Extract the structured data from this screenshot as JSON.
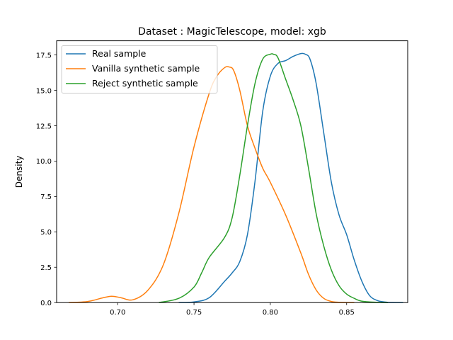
{
  "chart_data": {
    "type": "line",
    "title": "Dataset : MagicTelescope, model: xgb",
    "xlabel": "",
    "ylabel": "Density",
    "xlim": [
      0.66,
      0.89
    ],
    "ylim": [
      0,
      18.5
    ],
    "xticks": [
      0.7,
      0.75,
      0.8,
      0.85
    ],
    "xtick_labels": [
      "0.70",
      "0.75",
      "0.80",
      "0.85"
    ],
    "yticks": [
      0.0,
      2.5,
      5.0,
      7.5,
      10.0,
      12.5,
      15.0,
      17.5
    ],
    "ytick_labels": [
      "0.0",
      "2.5",
      "5.0",
      "7.5",
      "10.0",
      "12.5",
      "15.0",
      "17.5"
    ],
    "grid": false,
    "legend_position": "top-left",
    "series": [
      {
        "name": "Real sample",
        "color": "#1f77b4",
        "x": [
          0.74,
          0.75,
          0.76,
          0.77,
          0.775,
          0.78,
          0.785,
          0.79,
          0.795,
          0.8,
          0.805,
          0.81,
          0.815,
          0.82,
          0.823,
          0.826,
          0.83,
          0.835,
          0.84,
          0.845,
          0.85,
          0.855,
          0.86,
          0.865,
          0.87,
          0.875,
          0.88,
          0.887
        ],
        "y": [
          0.0,
          0.05,
          0.35,
          1.5,
          2.1,
          2.9,
          4.8,
          8.6,
          13.5,
          16.0,
          16.9,
          17.1,
          17.4,
          17.6,
          17.55,
          17.2,
          15.5,
          12.0,
          8.5,
          6.2,
          4.8,
          3.0,
          1.5,
          0.5,
          0.15,
          0.04,
          0.01,
          0.0
        ]
      },
      {
        "name": "Vanilla synthetic sample",
        "color": "#ff7f0e",
        "x": [
          0.668,
          0.68,
          0.69,
          0.696,
          0.702,
          0.71,
          0.72,
          0.73,
          0.74,
          0.75,
          0.76,
          0.765,
          0.77,
          0.773,
          0.776,
          0.78,
          0.785,
          0.79,
          0.795,
          0.8,
          0.81,
          0.82,
          0.825,
          0.83,
          0.835,
          0.84,
          0.845,
          0.85,
          0.855
        ],
        "y": [
          0.0,
          0.07,
          0.33,
          0.45,
          0.35,
          0.2,
          0.9,
          2.7,
          6.3,
          11.0,
          14.8,
          16.0,
          16.6,
          16.65,
          16.4,
          15.0,
          12.5,
          10.9,
          9.5,
          8.5,
          6.2,
          3.5,
          2.0,
          0.9,
          0.3,
          0.08,
          0.02,
          0.005,
          0.0
        ]
      },
      {
        "name": "Reject synthetic sample",
        "color": "#2ca02c",
        "x": [
          0.727,
          0.74,
          0.75,
          0.755,
          0.76,
          0.77,
          0.775,
          0.78,
          0.785,
          0.79,
          0.795,
          0.8,
          0.802,
          0.805,
          0.81,
          0.815,
          0.82,
          0.825,
          0.83,
          0.835,
          0.84,
          0.845,
          0.85,
          0.855,
          0.86,
          0.87,
          0.877
        ],
        "y": [
          0.0,
          0.3,
          1.1,
          2.1,
          3.2,
          4.6,
          6.0,
          9.0,
          12.5,
          15.5,
          17.2,
          17.55,
          17.55,
          17.3,
          15.8,
          14.3,
          12.5,
          9.5,
          6.3,
          4.0,
          2.3,
          1.2,
          0.6,
          0.3,
          0.1,
          0.02,
          0.0
        ]
      }
    ]
  }
}
